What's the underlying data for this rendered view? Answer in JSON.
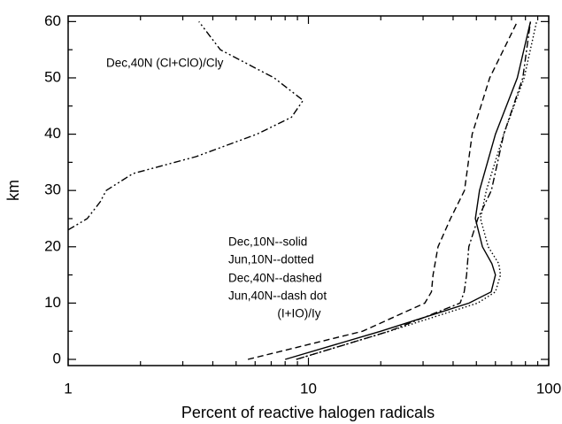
{
  "chart_data": {
    "type": "line",
    "xlabel": "Percent of reactive halogen radicals",
    "ylabel": "km",
    "xscale": "log",
    "xlim": [
      1,
      100
    ],
    "xticks": [
      1,
      10,
      100
    ],
    "xminorticks": [
      2,
      3,
      4,
      5,
      6,
      7,
      8,
      9,
      20,
      30,
      40,
      50,
      60,
      70,
      80,
      90
    ],
    "ylim": [
      -1.1,
      61
    ],
    "yticks": [
      0,
      10,
      20,
      30,
      40,
      50,
      60
    ],
    "yminorticks": [
      5,
      15,
      25,
      35,
      45,
      55
    ],
    "annotations": [
      "Dec,40N (Cl+ClO)/Cly",
      "Dec,10N--solid",
      "Jun,10N--dotted",
      "Dec,40N--dashed",
      "Jun,40N--dash dot",
      "(I+IO)/Iy"
    ],
    "series": [
      {
        "style": "solid",
        "color": "#000000",
        "x": [
          8,
          20,
          46.6,
          57.6,
          60,
          58,
          53,
          49.5,
          51.5,
          60,
          74,
          84
        ],
        "values": [
          0,
          5,
          10,
          12,
          15,
          17,
          20,
          25,
          30,
          40,
          50,
          60
        ]
      },
      {
        "style": "dotted",
        "color": "#000000",
        "x": [
          8.9,
          21.7,
          50.6,
          60,
          63,
          62,
          56,
          52,
          55,
          65,
          79,
          89
        ],
        "values": [
          0,
          5,
          10,
          12,
          15,
          17,
          20,
          25,
          30,
          40,
          50,
          60
        ]
      },
      {
        "style": "dashed",
        "color": "#000000",
        "x": [
          5.6,
          16.8,
          30.5,
          32.5,
          33,
          34.6,
          39,
          44.6,
          48,
          56.8,
          74
        ],
        "values": [
          0,
          5,
          10,
          12,
          15,
          20,
          25,
          30,
          40,
          50,
          60
        ]
      },
      {
        "style": "dashdot",
        "color": "#000000",
        "x": [
          8.9,
          21.7,
          42.8,
          44.5,
          45.5,
          46.5,
          50.7,
          57.7,
          65,
          78,
          84
        ],
        "values": [
          0,
          5,
          10,
          12,
          15,
          20,
          25,
          30,
          40,
          50,
          60
        ]
      },
      {
        "style": "dashdotdot",
        "color": "#000000",
        "x": [
          1,
          1.2,
          1.36,
          1.44,
          1.86,
          3.4,
          6.1,
          8.5,
          9.5,
          7.2,
          4.3,
          3.5
        ],
        "values": [
          23,
          25,
          28,
          30,
          33,
          36,
          40,
          43,
          46,
          50,
          55,
          60
        ]
      }
    ]
  }
}
